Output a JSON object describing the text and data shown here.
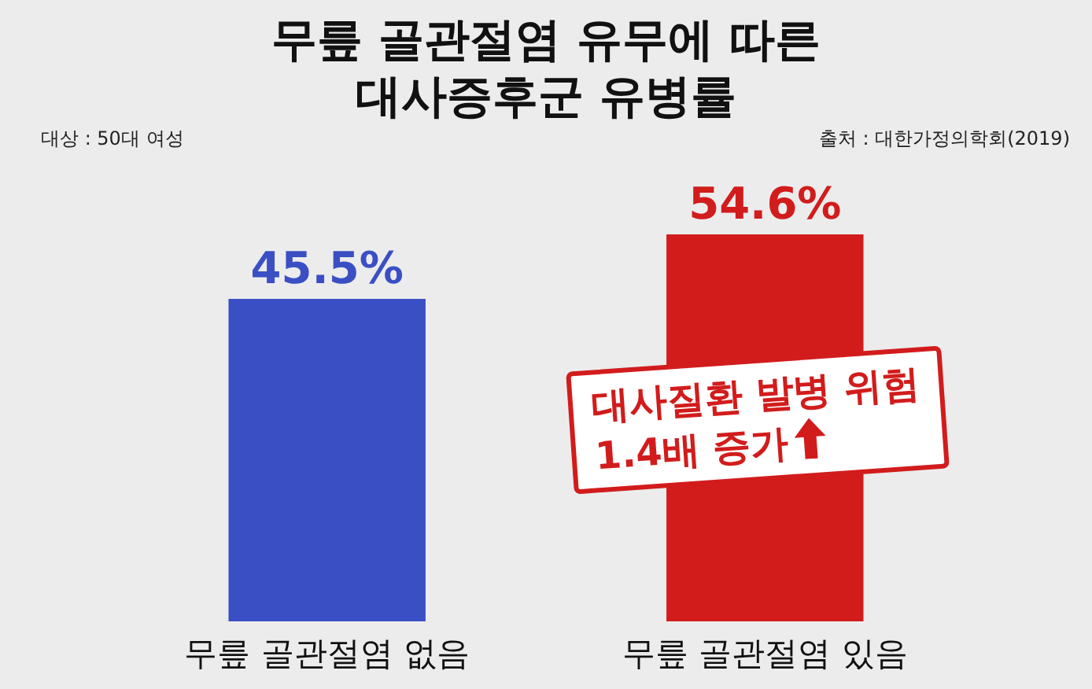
{
  "chart_data": {
    "type": "bar",
    "title": "무릎 골관절염 유무에 따른\n대사증후군 유병률",
    "categories": [
      "무릎 골관절염 없음",
      "무릎 골관절염 있음"
    ],
    "values": [
      45.5,
      54.6
    ],
    "value_labels": [
      "45.5%",
      "54.6%"
    ],
    "colors": [
      "#3b4fc4",
      "#d21c1c"
    ],
    "annotations": [
      "대상 : 50대 여성",
      "출처 : 대한가정의학회(2019)",
      "대사질환 발병 위험\n1.4배 증가"
    ]
  }
}
